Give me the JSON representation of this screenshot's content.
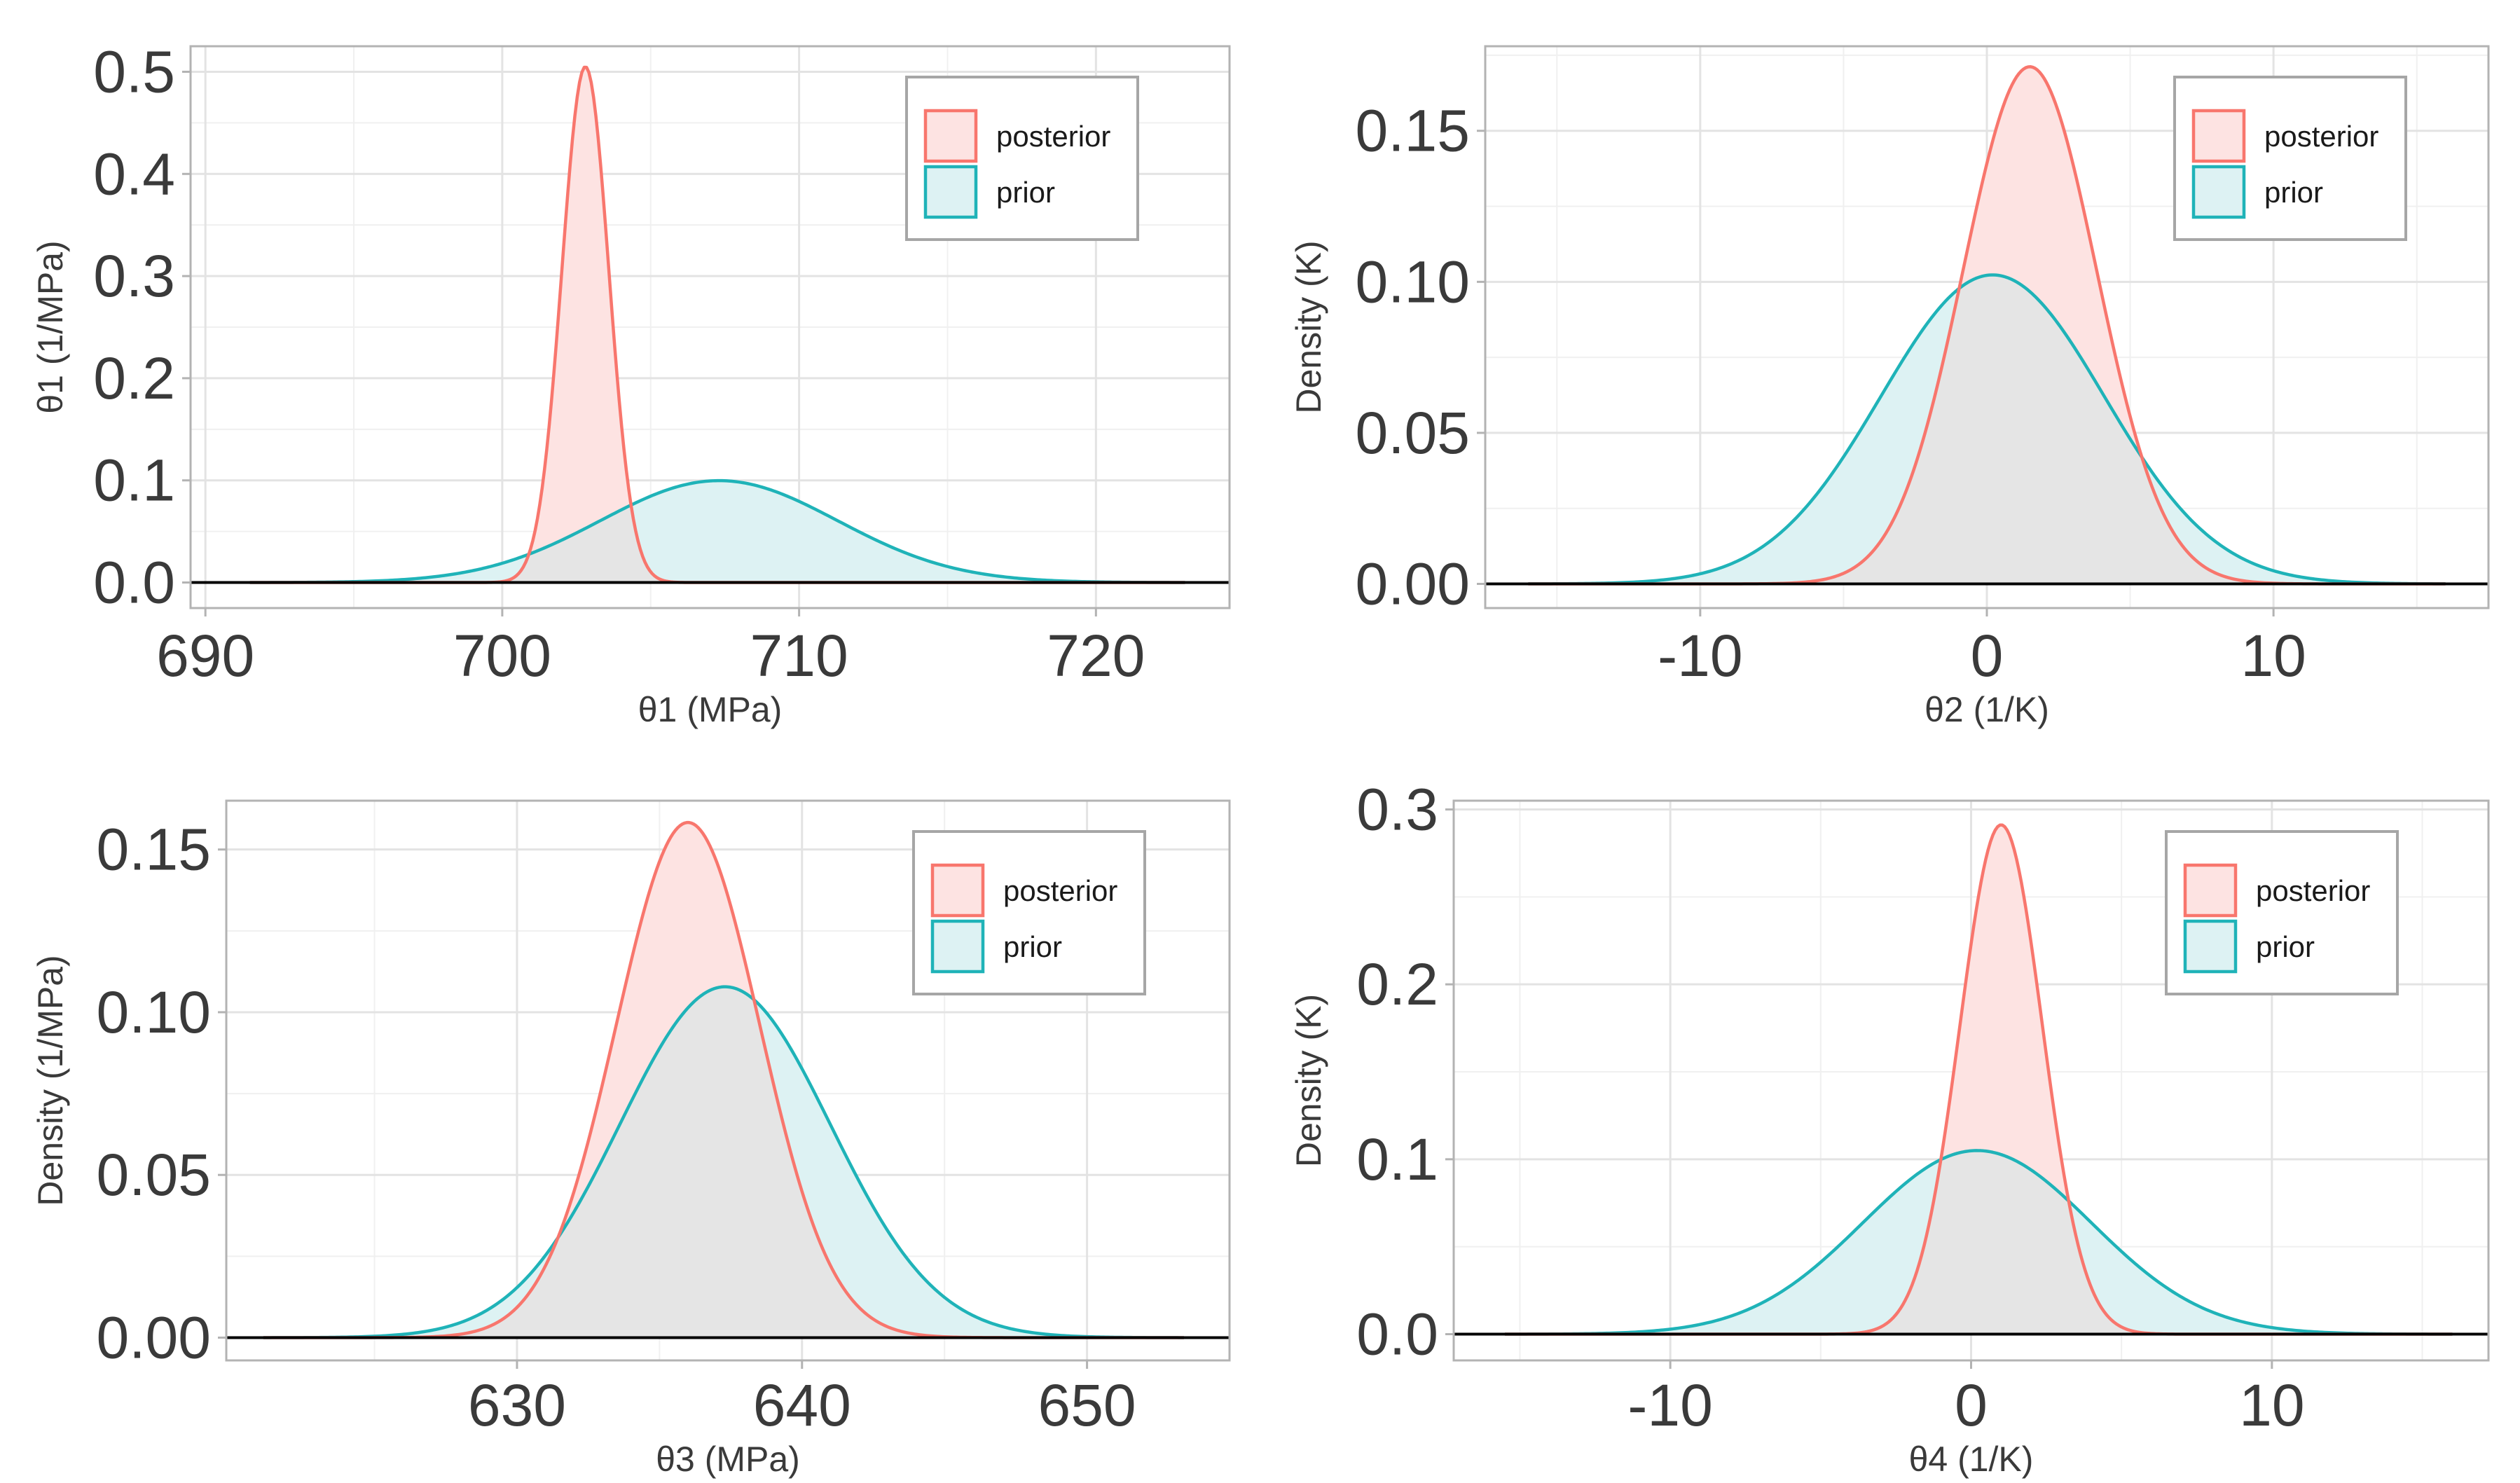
{
  "chart_data": [
    {
      "id": "panel1",
      "type": "density",
      "xlabel": "θ1 (MPa)",
      "ylabel": "θ1 (1/MPa)",
      "xlim": [
        689.5,
        724.5
      ],
      "ylim": [
        -0.025,
        0.525
      ],
      "x_range": [
        691.5,
        723
      ],
      "xticks": [
        690,
        700,
        710,
        720
      ],
      "xtick_labels": [
        "690",
        "700",
        "710",
        "720"
      ],
      "yticks": [
        0.0,
        0.1,
        0.2,
        0.3,
        0.4,
        0.5
      ],
      "ytick_labels": [
        "0.0",
        "0.1",
        "0.2",
        "0.3",
        "0.4",
        "0.5"
      ],
      "legend_position": "top-right",
      "series": [
        {
          "name": "posterior",
          "color": "#F8766D",
          "fill": "#FDE3E2",
          "mean": 702.8,
          "sd": 0.79,
          "area": 1.0
        },
        {
          "name": "prior",
          "color": "#1FB3B8",
          "fill": "#DDF2F3",
          "mean": 707.3,
          "sd": 4.0,
          "area": 1.0
        }
      ]
    },
    {
      "id": "panel2",
      "type": "density",
      "xlabel": "θ2 (1/K)",
      "ylabel": "Density (K)",
      "xlim": [
        -17.5,
        17.5
      ],
      "ylim": [
        -0.008,
        0.178
      ],
      "x_range": [
        -16,
        16
      ],
      "xticks": [
        -10,
        0,
        10
      ],
      "xtick_labels": [
        "-10",
        "0",
        "10"
      ],
      "yticks": [
        0.0,
        0.05,
        0.1,
        0.15
      ],
      "ytick_labels": [
        "0.00",
        "0.05",
        "0.10",
        "0.15"
      ],
      "legend_position": "top-right",
      "series": [
        {
          "name": "posterior",
          "color": "#F8766D",
          "fill": "#FDE3E2",
          "mean": 1.5,
          "sd": 2.33,
          "area": 1.0
        },
        {
          "name": "prior",
          "color": "#1FB3B8",
          "fill": "#DDF2F3",
          "mean": 0.2,
          "sd": 3.9,
          "area": 1.0
        }
      ]
    },
    {
      "id": "panel3",
      "type": "density",
      "xlabel": "θ3 (MPa)",
      "ylabel": "Density (1/MPa)",
      "xlim": [
        619.8,
        655.0
      ],
      "ylim": [
        -0.007,
        0.165
      ],
      "x_range": [
        621.1,
        653.4
      ],
      "xticks": [
        630,
        640,
        650
      ],
      "xtick_labels": [
        "630",
        "640",
        "650"
      ],
      "yticks": [
        0.0,
        0.05,
        0.1,
        0.15
      ],
      "ytick_labels": [
        "0.00",
        "0.05",
        "0.10",
        "0.15"
      ],
      "legend_position": "top-right",
      "series": [
        {
          "name": "posterior",
          "color": "#F8766D",
          "fill": "#FDE3E2",
          "mean": 636.0,
          "sd": 2.52,
          "area": 1.0
        },
        {
          "name": "prior",
          "color": "#1FB3B8",
          "fill": "#DDF2F3",
          "mean": 637.3,
          "sd": 3.7,
          "area": 1.0
        }
      ]
    },
    {
      "id": "panel4",
      "type": "density",
      "xlabel": "θ4 (1/K)",
      "ylabel": "Density (K)",
      "xlim": [
        -17.2,
        17.2
      ],
      "ylim": [
        -0.015,
        0.305
      ],
      "x_range": [
        -15.5,
        16
      ],
      "xticks": [
        -10,
        0,
        10
      ],
      "xtick_labels": [
        "-10",
        "0",
        "10"
      ],
      "yticks": [
        0.0,
        0.1,
        0.2,
        0.3
      ],
      "ytick_labels": [
        "0.0",
        "0.1",
        "0.2",
        "0.3"
      ],
      "legend_position": "top-right",
      "series": [
        {
          "name": "posterior",
          "color": "#F8766D",
          "fill": "#FDE3E2",
          "mean": 1.0,
          "sd": 1.37,
          "area": 1.0
        },
        {
          "name": "prior",
          "color": "#1FB3B8",
          "fill": "#DDF2F3",
          "mean": 0.2,
          "sd": 3.8,
          "area": 1.0
        }
      ]
    }
  ]
}
